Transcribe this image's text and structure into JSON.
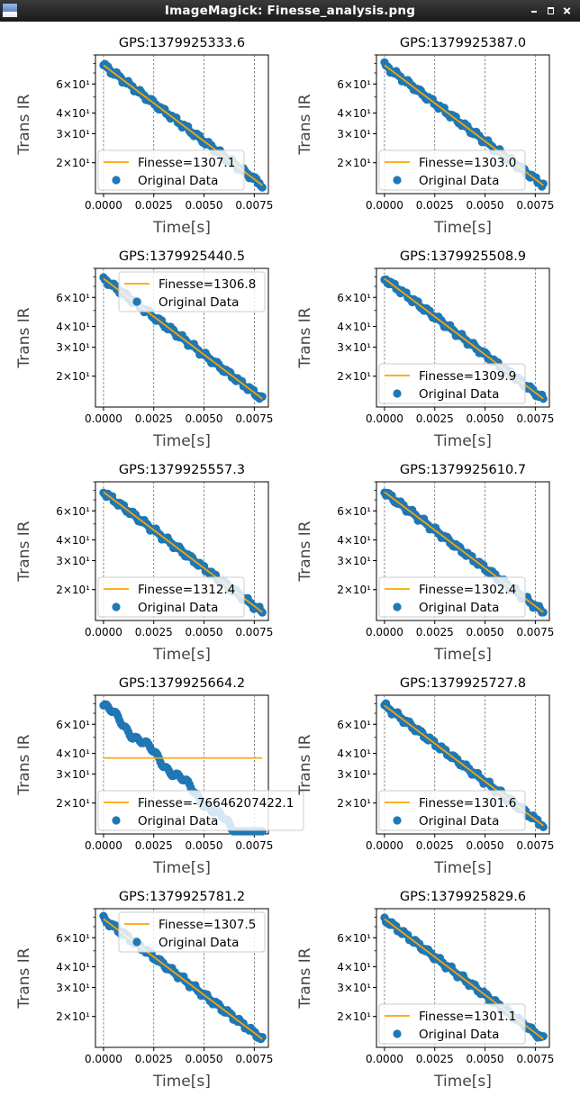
{
  "window": {
    "title": "ImageMagick: Finesse_analysis.png"
  },
  "chart_data": [
    {
      "type": "scatter",
      "title": "GPS:1379925333.6",
      "xlabel": "Time[s]",
      "ylabel": "Trans IR",
      "yscale": "log",
      "xlim": [
        -0.0004,
        0.0082
      ],
      "ylim": [
        13,
        90
      ],
      "legend_loc": "lower-left",
      "legend": [
        "Finesse=1307.1",
        "Original Data"
      ],
      "fit": {
        "finesse": 1307.1,
        "y_start": 78,
        "y_end": 14.6
      },
      "x_ticks": [
        "0.0000",
        "0.0025",
        "0.0050",
        "0.0075"
      ],
      "y_ticks": [
        "6×10¹",
        "4×10¹",
        "3×10¹",
        "2×10¹"
      ]
    },
    {
      "type": "scatter",
      "title": "GPS:1379925387.0",
      "xlabel": "Time[s]",
      "ylabel": "Trans IR",
      "yscale": "log",
      "xlim": [
        -0.0004,
        0.0082
      ],
      "ylim": [
        13,
        90
      ],
      "legend_loc": "lower-left",
      "legend": [
        "Finesse=1303.0",
        "Original Data"
      ],
      "fit": {
        "finesse": 1303.0,
        "y_start": 78,
        "y_end": 14.6
      },
      "x_ticks": [
        "0.0000",
        "0.0025",
        "0.0050",
        "0.0075"
      ],
      "y_ticks": [
        "6×10¹",
        "4×10¹",
        "3×10¹",
        "2×10¹"
      ]
    },
    {
      "type": "scatter",
      "title": "GPS:1379925440.5",
      "xlabel": "Time[s]",
      "ylabel": "Trans IR",
      "yscale": "log",
      "xlim": [
        -0.0004,
        0.0082
      ],
      "ylim": [
        13,
        90
      ],
      "legend_loc": "upper-center",
      "legend": [
        "Finesse=1306.8",
        "Original Data"
      ],
      "fit": {
        "finesse": 1306.8,
        "y_start": 78,
        "y_end": 14.6
      },
      "x_ticks": [
        "0.0000",
        "0.0025",
        "0.0050",
        "0.0075"
      ],
      "y_ticks": [
        "6×10¹",
        "4×10¹",
        "3×10¹",
        "2×10¹"
      ]
    },
    {
      "type": "scatter",
      "title": "GPS:1379925508.9",
      "xlabel": "Time[s]",
      "ylabel": "Trans IR",
      "yscale": "log",
      "xlim": [
        -0.0004,
        0.0082
      ],
      "ylim": [
        13,
        90
      ],
      "legend_loc": "lower-left",
      "legend": [
        "Finesse=1309.9",
        "Original Data"
      ],
      "fit": {
        "finesse": 1309.9,
        "y_start": 78,
        "y_end": 14.6
      },
      "x_ticks": [
        "0.0000",
        "0.0025",
        "0.0050",
        "0.0075"
      ],
      "y_ticks": [
        "6×10¹",
        "4×10¹",
        "3×10¹",
        "2×10¹"
      ]
    },
    {
      "type": "scatter",
      "title": "GPS:1379925557.3",
      "xlabel": "Time[s]",
      "ylabel": "Trans IR",
      "yscale": "log",
      "xlim": [
        -0.0004,
        0.0082
      ],
      "ylim": [
        13,
        90
      ],
      "legend_loc": "lower-left",
      "legend": [
        "Finesse=1312.4",
        "Original Data"
      ],
      "fit": {
        "finesse": 1312.4,
        "y_start": 78,
        "y_end": 14.6
      },
      "x_ticks": [
        "0.0000",
        "0.0025",
        "0.0050",
        "0.0075"
      ],
      "y_ticks": [
        "6×10¹",
        "4×10¹",
        "3×10¹",
        "2×10¹"
      ]
    },
    {
      "type": "scatter",
      "title": "GPS:1379925610.7",
      "xlabel": "Time[s]",
      "ylabel": "Trans IR",
      "yscale": "log",
      "xlim": [
        -0.0004,
        0.0082
      ],
      "ylim": [
        13,
        90
      ],
      "legend_loc": "lower-left",
      "legend": [
        "Finesse=1302.4",
        "Original Data"
      ],
      "fit": {
        "finesse": 1302.4,
        "y_start": 78,
        "y_end": 14.6
      },
      "x_ticks": [
        "0.0000",
        "0.0025",
        "0.0050",
        "0.0075"
      ],
      "y_ticks": [
        "6×10¹",
        "4×10¹",
        "3×10¹",
        "2×10¹"
      ]
    },
    {
      "type": "scatter",
      "title": "GPS:1379925664.2",
      "xlabel": "Time[s]",
      "ylabel": "Trans IR",
      "yscale": "log",
      "xlim": [
        -0.0004,
        0.0082
      ],
      "ylim": [
        13,
        90
      ],
      "legend_loc": "lower-left",
      "legend": [
        "Finesse=-76646207422.1",
        "Original Data"
      ],
      "fit": {
        "finesse": -76646207422.1,
        "y_start": 37.5,
        "y_end": 37.5
      },
      "x_ticks": [
        "0.0000",
        "0.0025",
        "0.0050",
        "0.0075"
      ],
      "y_ticks": [
        "6×10¹",
        "4×10¹",
        "3×10¹",
        "2×10¹"
      ]
    },
    {
      "type": "scatter",
      "title": "GPS:1379925727.8",
      "xlabel": "Time[s]",
      "ylabel": "Trans IR",
      "yscale": "log",
      "xlim": [
        -0.0004,
        0.0082
      ],
      "ylim": [
        13,
        90
      ],
      "legend_loc": "lower-left",
      "legend": [
        "Finesse=1301.6",
        "Original Data"
      ],
      "fit": {
        "finesse": 1301.6,
        "y_start": 78,
        "y_end": 14.6
      },
      "x_ticks": [
        "0.0000",
        "0.0025",
        "0.0050",
        "0.0075"
      ],
      "y_ticks": [
        "6×10¹",
        "4×10¹",
        "3×10¹",
        "2×10¹"
      ]
    },
    {
      "type": "scatter",
      "title": "GPS:1379925781.2",
      "xlabel": "Time[s]",
      "ylabel": "Trans IR",
      "yscale": "log",
      "xlim": [
        -0.0004,
        0.0082
      ],
      "ylim": [
        13,
        90
      ],
      "legend_loc": "upper-center",
      "legend": [
        "Finesse=1307.5",
        "Original Data"
      ],
      "fit": {
        "finesse": 1307.5,
        "y_start": 78,
        "y_end": 14.6
      },
      "x_ticks": [
        "0.0000",
        "0.0025",
        "0.0050",
        "0.0075"
      ],
      "y_ticks": [
        "6×10¹",
        "4×10¹",
        "3×10¹",
        "2×10¹"
      ]
    },
    {
      "type": "scatter",
      "title": "GPS:1379925829.6",
      "xlabel": "Time[s]",
      "ylabel": "Trans IR",
      "yscale": "log",
      "xlim": [
        -0.0004,
        0.0082
      ],
      "ylim": [
        13,
        90
      ],
      "legend_loc": "lower-left",
      "legend": [
        "Finesse=1301.1",
        "Original Data"
      ],
      "fit": {
        "finesse": 1301.1,
        "y_start": 78,
        "y_end": 14.6
      },
      "x_ticks": [
        "0.0000",
        "0.0025",
        "0.0050",
        "0.0075"
      ],
      "y_ticks": [
        "6×10¹",
        "4×10¹",
        "3×10¹",
        "2×10¹"
      ]
    }
  ],
  "colors": {
    "data": "#1f77b4",
    "fit": "#ffa500"
  }
}
